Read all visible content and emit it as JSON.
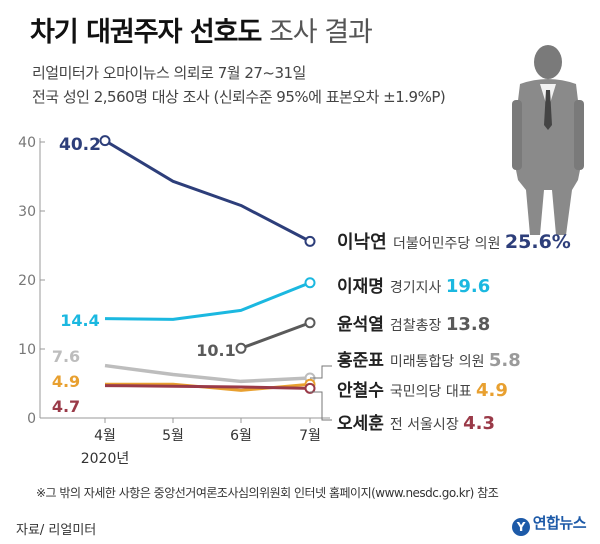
{
  "header": {
    "title_bold": "차기 대권주자 선호도",
    "title_light": "조사 결과",
    "subtitle_line1": "리얼미터가 오마이뉴스 의뢰로 7월 27~31일",
    "subtitle_line2": "전국 성인 2,560명 대상 조사 (신뢰수준 95%에 표본오차 ±1.9%P)"
  },
  "chart_data": {
    "type": "line",
    "categories": [
      "4월",
      "5월",
      "6월",
      "7월"
    ],
    "year_label": "2020년",
    "ylim": [
      0,
      40
    ],
    "yticks": [
      "0",
      "10",
      "20",
      "30",
      "40"
    ],
    "grid": false,
    "series": [
      {
        "name": "이낙연",
        "party": "더불어민주당 의원",
        "color": "#2d3e7a",
        "values": [
          40.2,
          34.3,
          30.8,
          25.6
        ],
        "start_label": "40.2",
        "end_label": "25.6%"
      },
      {
        "name": "이재명",
        "party": "경기지사",
        "color": "#1bb8e0",
        "values": [
          14.4,
          14.3,
          15.6,
          19.6
        ],
        "start_label": "14.4",
        "end_label": "19.6"
      },
      {
        "name": "윤석열",
        "party": "검찰총장",
        "color": "#5a5a5a",
        "values": [
          null,
          null,
          10.1,
          13.8
        ],
        "start_label": "10.1",
        "end_label": "13.8"
      },
      {
        "name": "홍준표",
        "party": "미래통합당 의원",
        "color": "#bdbdbd",
        "values": [
          7.6,
          6.3,
          5.3,
          5.8
        ],
        "start_label": "7.6",
        "end_label": "5.8"
      },
      {
        "name": "안철수",
        "party": "국민의당 대표",
        "color": "#e8a030",
        "values": [
          4.9,
          4.9,
          4.0,
          4.9
        ],
        "start_label": "4.9",
        "end_label": "4.9"
      },
      {
        "name": "오세훈",
        "party": "전 서울시장",
        "color": "#9a3a48",
        "values": [
          4.7,
          4.6,
          4.5,
          4.3
        ],
        "start_label": "4.7",
        "end_label": "4.3"
      }
    ]
  },
  "footer": {
    "note": "※그 밖의 자세한 사항은 중앙선거여론조사심의위원회 인터넷 홈페이지(www.nesdc.go.kr) 참조",
    "source": "자료/ 리얼미터",
    "logo_mark": "Y",
    "logo_text": "연합뉴스"
  },
  "illustration": "businessman-silhouette"
}
